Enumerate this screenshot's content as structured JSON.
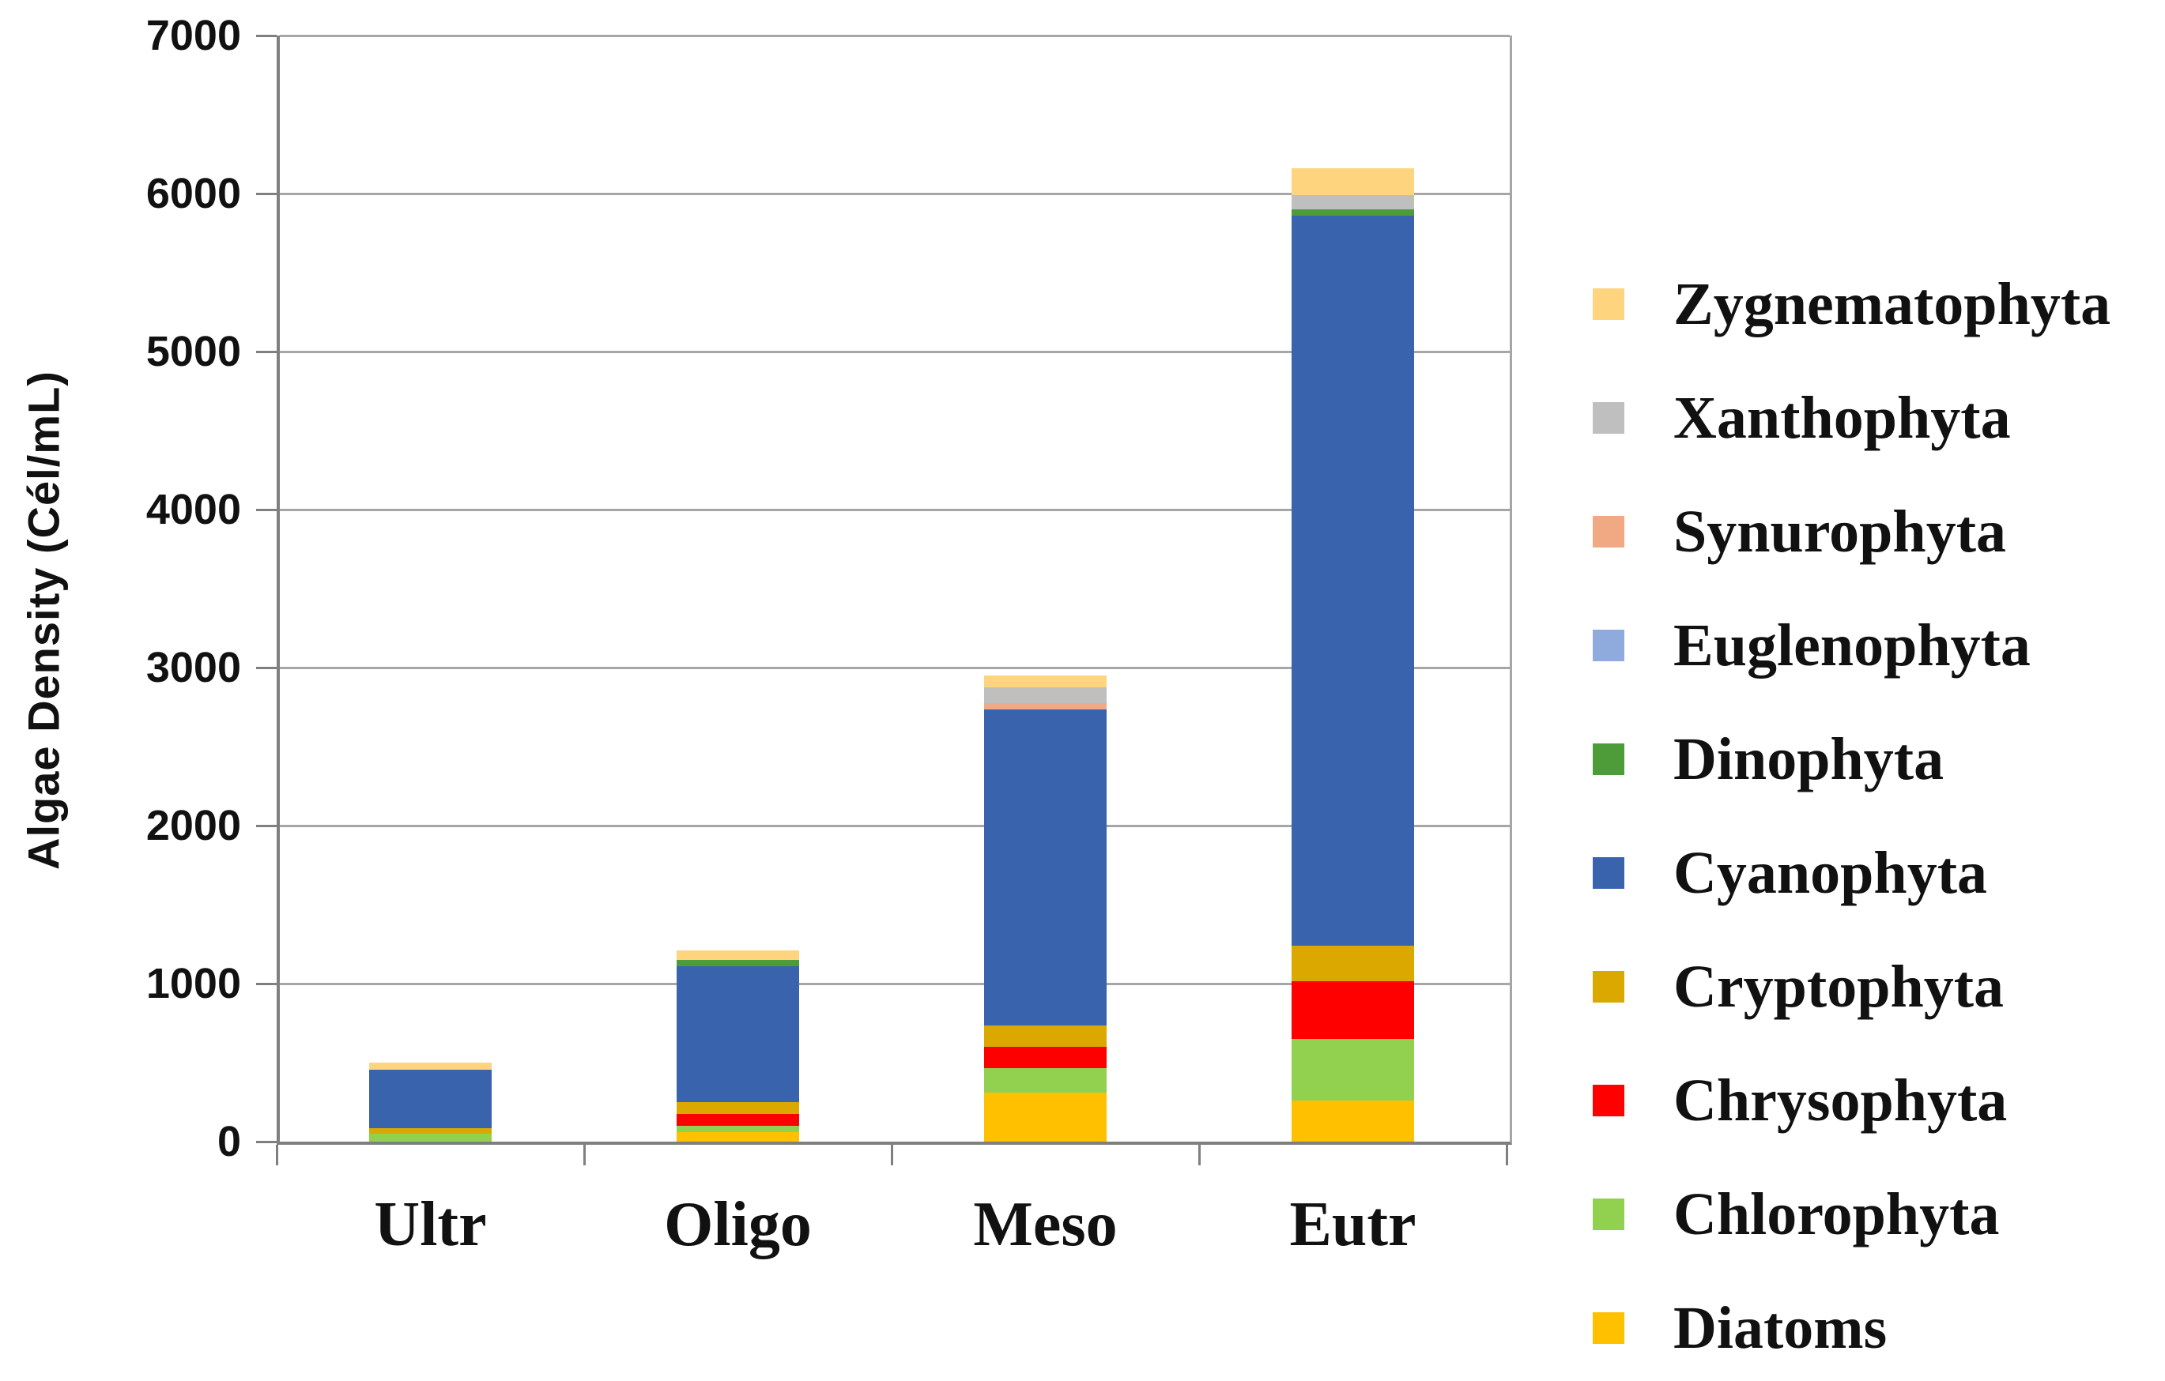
{
  "chart_data": {
    "type": "bar",
    "stacked": true,
    "title": "",
    "ylabel": "Algae Density (Cél/mL)",
    "xlabel": "",
    "categories": [
      "Ultr",
      "Oligo",
      "Meso",
      "Eutr"
    ],
    "series": [
      {
        "name": "Diatoms",
        "color": "#FFC000",
        "values": [
          0,
          60,
          310,
          260
        ]
      },
      {
        "name": "Chlorophyta",
        "color": "#92D050",
        "values": [
          50,
          40,
          155,
          390
        ]
      },
      {
        "name": "Chrysophyta",
        "color": "#FF0000",
        "values": [
          0,
          75,
          135,
          365
        ]
      },
      {
        "name": "Cryptophyta",
        "color": "#DBA800",
        "values": [
          35,
          75,
          135,
          225
        ]
      },
      {
        "name": "Cyanophyta",
        "color": "#3A63AE",
        "values": [
          370,
          860,
          2000,
          4620
        ]
      },
      {
        "name": "Dinophyta",
        "color": "#4E9B3A",
        "values": [
          0,
          40,
          0,
          40
        ]
      },
      {
        "name": "Euglenophyta",
        "color": "#8FAADC",
        "values": [
          0,
          0,
          0,
          0
        ]
      },
      {
        "name": "Synurophyta",
        "color": "#F1A983",
        "values": [
          0,
          0,
          40,
          0
        ]
      },
      {
        "name": "Xanthophyta",
        "color": "#BFBFBF",
        "values": [
          0,
          0,
          100,
          90
        ]
      },
      {
        "name": "Zygnematophyta",
        "color": "#FFD47E",
        "values": [
          45,
          60,
          75,
          170
        ]
      }
    ],
    "bar_totals": [
      500,
      1210,
      2950,
      6160
    ],
    "y_ticks": [
      0,
      1000,
      2000,
      3000,
      4000,
      5000,
      6000,
      7000
    ],
    "ylim": [
      0,
      7000
    ],
    "grid": true,
    "legend_position": "right",
    "legend_top_to_bottom": [
      "Zygnematophyta",
      "Xanthophyta",
      "Synurophyta",
      "Euglenophyta",
      "Dinophyta",
      "Cyanophyta",
      "Cryptophyta",
      "Chrysophyta",
      "Chlorophyta",
      "Diatoms"
    ]
  }
}
